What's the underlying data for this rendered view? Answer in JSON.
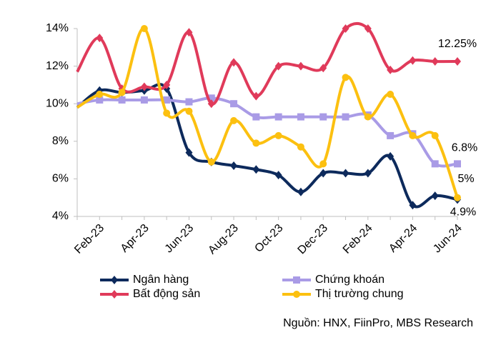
{
  "chart_data": {
    "type": "line",
    "categories": [
      null,
      "Feb-23",
      null,
      "Apr-23",
      null,
      "Jun-23",
      null,
      "Aug-23",
      null,
      "Oct-23",
      null,
      "Dec-23",
      null,
      "Feb-24",
      null,
      "Apr-24",
      null,
      "Jun-24"
    ],
    "ylim": [
      4,
      14
    ],
    "yticks": [
      {
        "value": 4,
        "label": "4%"
      },
      {
        "value": 6,
        "label": "6%"
      },
      {
        "value": 8,
        "label": "8%"
      },
      {
        "value": 10,
        "label": "10%"
      },
      {
        "value": 12,
        "label": "12%"
      },
      {
        "value": 14,
        "label": "14%"
      }
    ],
    "series": [
      {
        "name": "Ngân hàng",
        "color": "#0d2a5c",
        "marker": "diamond",
        "values": [
          9.8,
          10.7,
          10.6,
          10.7,
          10.8,
          7.4,
          6.9,
          6.7,
          6.5,
          6.2,
          5.3,
          6.3,
          6.3,
          6.3,
          7.2,
          4.6,
          5.1,
          4.9
        ],
        "value_labels": [
          null,
          null,
          null,
          null,
          null,
          null,
          null,
          null,
          null,
          null,
          null,
          null,
          null,
          null,
          null,
          null,
          null,
          "4.9%"
        ]
      },
      {
        "name": "Chứng khoán",
        "color": "#a99be6",
        "marker": "square",
        "values": [
          10.0,
          10.2,
          10.2,
          10.2,
          10.2,
          10.1,
          10.3,
          10.0,
          9.3,
          9.3,
          9.3,
          9.3,
          9.3,
          9.4,
          8.3,
          8.4,
          6.8,
          6.8
        ],
        "value_labels": [
          null,
          null,
          null,
          null,
          null,
          null,
          null,
          null,
          null,
          null,
          null,
          null,
          null,
          null,
          null,
          null,
          null,
          "6.8%"
        ]
      },
      {
        "name": "Bất động sản",
        "color": "#e03a5a",
        "marker": "diamond",
        "values": [
          11.7,
          13.5,
          10.8,
          10.9,
          11.0,
          13.8,
          10.0,
          12.2,
          10.4,
          12.0,
          12.0,
          11.9,
          14.0,
          14.0,
          11.8,
          12.3,
          12.25,
          12.25
        ],
        "value_labels": [
          null,
          null,
          null,
          null,
          null,
          null,
          null,
          null,
          null,
          null,
          null,
          null,
          null,
          null,
          null,
          null,
          null,
          "12.25%"
        ]
      },
      {
        "name": "Thị trường chung",
        "color": "#fcc010",
        "marker": "circle",
        "values": [
          9.8,
          10.5,
          10.6,
          14.0,
          9.5,
          9.6,
          6.9,
          9.1,
          7.9,
          8.3,
          7.7,
          6.8,
          11.4,
          9.3,
          10.5,
          8.3,
          8.3,
          5.0
        ],
        "value_labels": [
          null,
          null,
          null,
          null,
          null,
          null,
          null,
          null,
          null,
          null,
          null,
          null,
          null,
          null,
          null,
          null,
          null,
          "5%"
        ]
      }
    ],
    "source": "Nguồn: HNX, FiinPro, MBS Research"
  }
}
